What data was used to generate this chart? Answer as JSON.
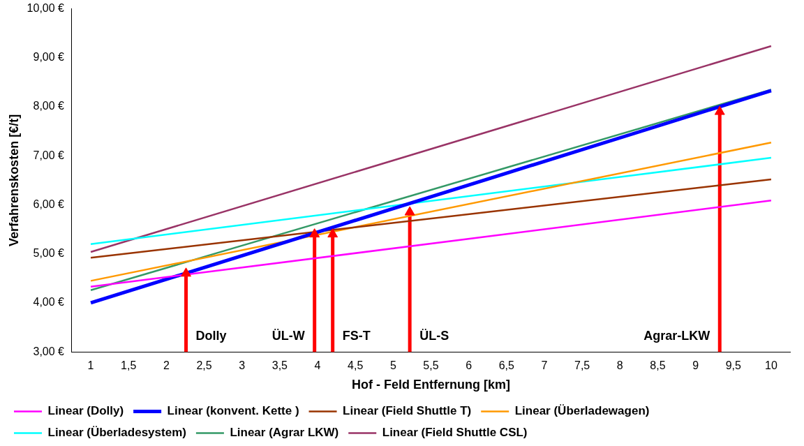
{
  "chart_data": {
    "type": "line",
    "xlabel": "Hof - Feld Entfernung [km]",
    "ylabel": "Verfahrenskosten [€/t]",
    "x": [
      1,
      10
    ],
    "series": [
      {
        "name": "Linear (Dolly)",
        "color": "#ff00ff",
        "values": [
          4.33,
          6.09
        ]
      },
      {
        "name": "Linear (konvent. Kette )",
        "color": "#0000ff",
        "values": [
          4.0,
          8.33
        ]
      },
      {
        "name": "Linear (Field Shuttle T)",
        "color": "#993300",
        "values": [
          4.92,
          6.52
        ]
      },
      {
        "name": "Linear (Überladewagen)",
        "color": "#ff9900",
        "values": [
          4.45,
          7.27
        ]
      },
      {
        "name": "Linear (Überladesystem)",
        "color": "#00ffff",
        "values": [
          5.2,
          6.96
        ]
      },
      {
        "name": "Linear (Agrar LKW)",
        "color": "#339966",
        "values": [
          4.26,
          8.35
        ]
      },
      {
        "name": "Linear (Field Shuttle CSL)",
        "color": "#993366",
        "values": [
          5.04,
          9.24
        ]
      },
      {
        "type": "lollipop",
        "marker": "triangle",
        "color": "#ff0000",
        "x": [
          2.26,
          3.96,
          4.2,
          5.22,
          9.32
        ],
        "values": [
          4.6,
          5.4,
          5.4,
          5.85,
          7.9
        ]
      }
    ],
    "annotations": [
      "Dolly",
      "ÜL-W",
      "FS-T",
      "ÜL-S",
      "Agrar-LKW"
    ],
    "xlim": [
      0.75,
      10.25
    ],
    "xticks": [
      1,
      {
        "value": 1.5,
        "label": "1,5"
      },
      2,
      {
        "value": 2.5,
        "label": "2,5"
      },
      3,
      {
        "value": 3.5,
        "label": "3,5"
      },
      4,
      {
        "value": 4.5,
        "label": "4,5"
      },
      5,
      {
        "value": 5.5,
        "label": "5,5"
      },
      6,
      {
        "value": 6.5,
        "label": "6,5"
      },
      7,
      {
        "value": 7.5,
        "label": "7,5"
      },
      8,
      {
        "value": 8.5,
        "label": "8,5"
      },
      9,
      {
        "value": 9.5,
        "label": "9,5"
      },
      10
    ],
    "ylim": [
      3,
      10
    ],
    "yticks": [
      {
        "value": 3,
        "label": "3,00 €"
      },
      {
        "value": 4,
        "label": "4,00 €"
      },
      {
        "value": 5,
        "label": "5,00 €"
      },
      {
        "value": 6,
        "label": "6,00 €"
      },
      {
        "value": 7,
        "label": "7,00 €"
      },
      {
        "value": 8,
        "label": "8,00 €"
      },
      {
        "value": 9,
        "label": "9,00 €"
      },
      {
        "value": 10,
        "label": "10,00 €"
      }
    ],
    "legend": "bottom",
    "grid": false,
    "marker": "none",
    "line_style": "solid"
  }
}
